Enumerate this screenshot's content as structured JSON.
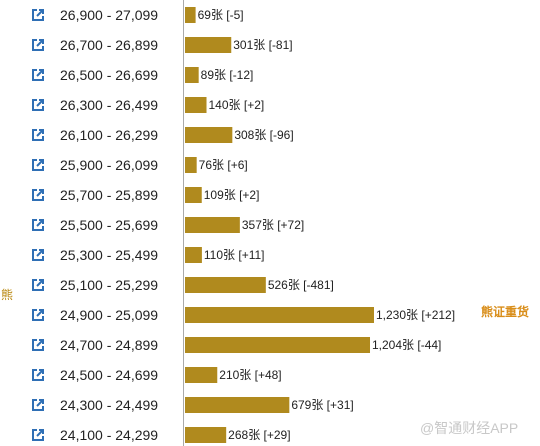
{
  "chart_data": {
    "type": "bar",
    "orientation": "horizontal",
    "categories": [
      "26,900 - 27,099",
      "26,700 - 26,899",
      "26,500 - 26,699",
      "26,300 - 26,499",
      "26,100 - 26,299",
      "25,900 - 26,099",
      "25,700 - 25,899",
      "25,500 - 25,699",
      "25,300 - 25,499",
      "25,100 - 25,299",
      "24,900 - 25,099",
      "24,700 - 24,899",
      "24,500 - 24,699",
      "24,300 - 24,499",
      "24,100 - 24,299"
    ],
    "values": [
      69,
      301,
      89,
      140,
      308,
      76,
      109,
      357,
      110,
      526,
      1230,
      1204,
      210,
      679,
      268
    ],
    "labels": [
      "69张 [-5]",
      "301张 [-81]",
      "89张 [-12]",
      "140张 [+2]",
      "308张 [-96]",
      "76张 [+6]",
      "109张 [+2]",
      "357张 [+72]",
      "110张 [+11]",
      "526张 [-481]",
      "1,230张 [+212]",
      "1,204张 [-44]",
      "210张 [+48]",
      "679张 [+31]",
      "268张 [+29]"
    ],
    "xlim": [
      0,
      1230
    ],
    "bar_color": "#b08a1e",
    "icon_color": "#2f6fb5",
    "grid": false,
    "side_label_left": "熊",
    "side_label_right": "熊证重货",
    "watermark": "@智通财经APP"
  }
}
